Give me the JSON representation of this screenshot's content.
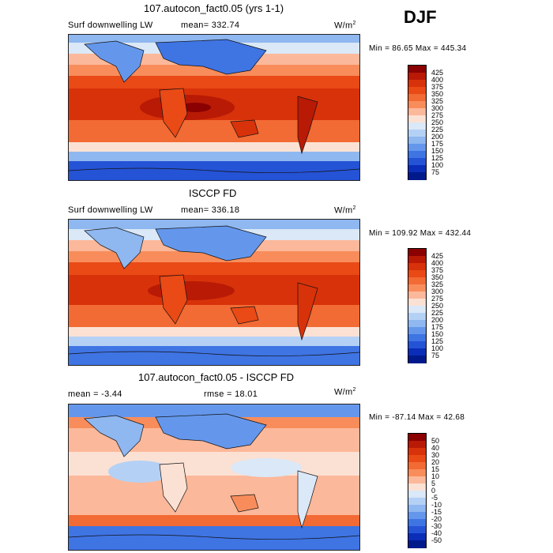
{
  "season": "DJF",
  "panels": [
    {
      "title": "107.autocon_fact0.05 (yrs 1-1)",
      "left_label": "Surf downwelling LW",
      "mean_label": "mean= 332.74",
      "units": "W/m",
      "units_exp": "2",
      "minmax": "Min =  86.65 Max = 445.34",
      "levels": [
        "425",
        "400",
        "375",
        "350",
        "325",
        "300",
        "275",
        "250",
        "225",
        "200",
        "175",
        "150",
        "125",
        "100",
        "75"
      ],
      "colors": [
        "#8b0000",
        "#b81a05",
        "#d8320a",
        "#e94a16",
        "#f26a34",
        "#f88d5b",
        "#fcb89a",
        "#fbe1d4",
        "#dae8f7",
        "#b4d1f5",
        "#8fb7f0",
        "#6497ec",
        "#3f74e3",
        "#2553d6",
        "#0a2eb8",
        "#001a8c"
      ]
    },
    {
      "title": "ISCCP FD",
      "left_label": "Surf downwelling LW",
      "mean_label": "mean= 336.18",
      "units": "W/m",
      "units_exp": "2",
      "minmax": "Min = 109.92 Max = 432.44",
      "levels": [
        "425",
        "400",
        "375",
        "350",
        "325",
        "300",
        "275",
        "250",
        "225",
        "200",
        "175",
        "150",
        "125",
        "100",
        "75"
      ],
      "colors": [
        "#8b0000",
        "#b81a05",
        "#d8320a",
        "#e94a16",
        "#f26a34",
        "#f88d5b",
        "#fcb89a",
        "#fbe1d4",
        "#dae8f7",
        "#b4d1f5",
        "#8fb7f0",
        "#6497ec",
        "#3f74e3",
        "#2553d6",
        "#0a2eb8",
        "#001a8c"
      ]
    },
    {
      "title": "107.autocon_fact0.05 - ISCCP FD",
      "left_label": "mean =   -3.44",
      "mean_label": "rmse =  18.01",
      "units": "W/m",
      "units_exp": "2",
      "minmax": "Min = -87.14 Max =  42.68",
      "levels": [
        "50",
        "40",
        "30",
        "20",
        "15",
        "10",
        "5",
        "0",
        "-5",
        "-10",
        "-15",
        "-20",
        "-30",
        "-40",
        "-50"
      ],
      "colors": [
        "#8b0000",
        "#b81a05",
        "#d8320a",
        "#e94a16",
        "#f26a34",
        "#f88d5b",
        "#fcb89a",
        "#fbe1d4",
        "#dae8f7",
        "#b4d1f5",
        "#8fb7f0",
        "#6497ec",
        "#3f74e3",
        "#2553d6",
        "#0a2eb8",
        "#001a8c"
      ]
    }
  ],
  "chart_data": [
    {
      "type": "heatmap",
      "title": "107.autocon_fact0.05 (yrs 1-1)",
      "variable": "Surf downwelling LW",
      "units": "W/m2",
      "mean": 332.74,
      "min": 86.65,
      "max": 445.34,
      "colorbar_levels": [
        75,
        100,
        125,
        150,
        175,
        200,
        225,
        250,
        275,
        300,
        325,
        350,
        375,
        400,
        425
      ]
    },
    {
      "type": "heatmap",
      "title": "ISCCP FD",
      "variable": "Surf downwelling LW",
      "units": "W/m2",
      "mean": 336.18,
      "min": 109.92,
      "max": 432.44,
      "colorbar_levels": [
        75,
        100,
        125,
        150,
        175,
        200,
        225,
        250,
        275,
        300,
        325,
        350,
        375,
        400,
        425
      ]
    },
    {
      "type": "heatmap",
      "title": "107.autocon_fact0.05 - ISCCP FD",
      "units": "W/m2",
      "mean": -3.44,
      "rmse": 18.01,
      "min": -87.14,
      "max": 42.68,
      "colorbar_levels": [
        -50,
        -40,
        -30,
        -20,
        -15,
        -10,
        -5,
        0,
        5,
        10,
        15,
        20,
        30,
        40,
        50
      ]
    }
  ]
}
